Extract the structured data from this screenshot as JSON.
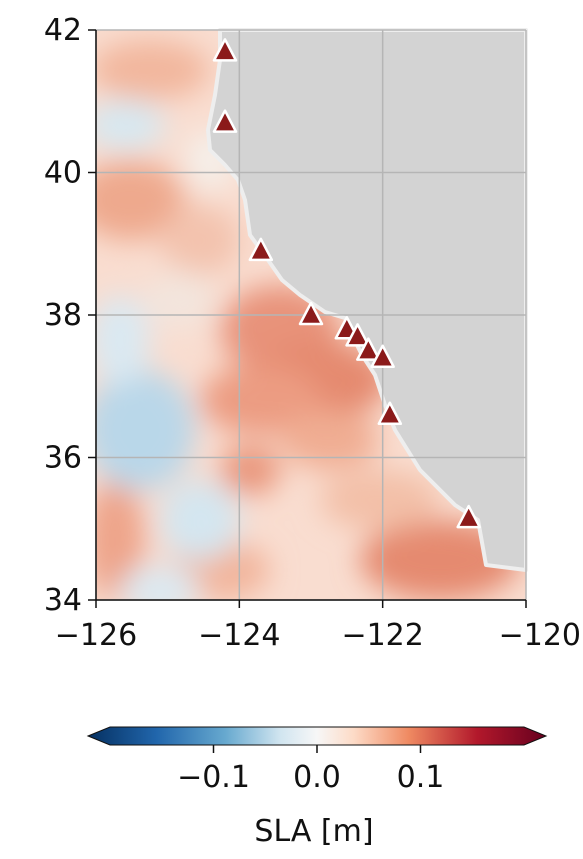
{
  "map": {
    "x_ticks": [
      "−126",
      "−124",
      "−122",
      "−120"
    ],
    "y_ticks": [
      "34",
      "36",
      "38",
      "40",
      "42"
    ],
    "x_range": [
      -126,
      -120
    ],
    "y_range": [
      34,
      42
    ],
    "land_color": "#d3d3d3",
    "grid": true,
    "stations": [
      {
        "lon": -124.2,
        "lat": 41.7
      },
      {
        "lon": -124.2,
        "lat": 40.7
      },
      {
        "lon": -123.7,
        "lat": 38.9
      },
      {
        "lon": -123.0,
        "lat": 38.0
      },
      {
        "lon": -122.5,
        "lat": 37.8
      },
      {
        "lon": -122.35,
        "lat": 37.7
      },
      {
        "lon": -122.2,
        "lat": 37.5
      },
      {
        "lon": -122.0,
        "lat": 37.4
      },
      {
        "lon": -121.9,
        "lat": 36.6
      },
      {
        "lon": -120.8,
        "lat": 35.15
      }
    ],
    "station_marker": "triangle",
    "station_color": "#8b1a1a"
  },
  "colorbar": {
    "label": "SLA [m]",
    "tick_labels": [
      "−0.1",
      "0.0",
      "0.1"
    ],
    "tick_values": [
      -0.1,
      0.0,
      0.1
    ],
    "range": [
      -0.2,
      0.2
    ],
    "colormap": "RdBu_r",
    "extend": "both"
  }
}
